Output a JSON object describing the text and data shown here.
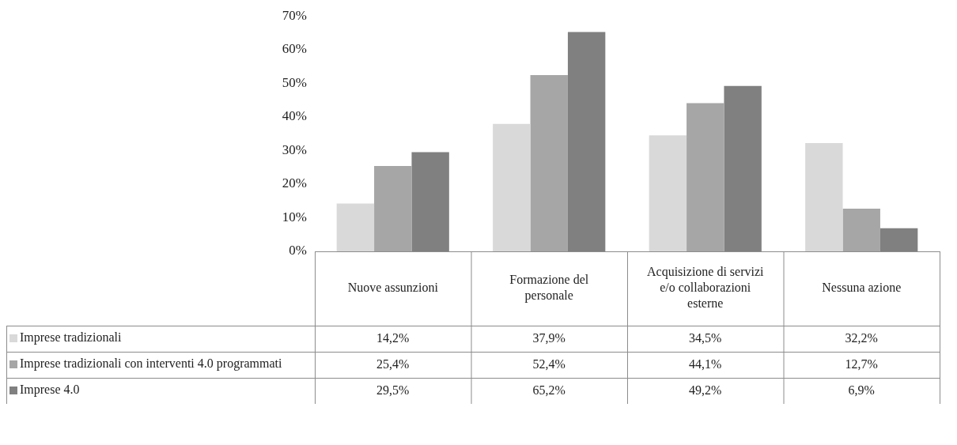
{
  "chart_data": {
    "type": "bar",
    "categories": [
      "Nuove assunzioni",
      "Formazione del personale",
      "Acquisizione di servizi e/o collaborazioni esterne",
      "Nessuna azione"
    ],
    "series": [
      {
        "name": "Imprese tradizionali",
        "color": "#d9d9d9",
        "values": [
          14.2,
          37.9,
          34.5,
          32.2
        ],
        "value_labels": [
          "14,2%",
          "37,9%",
          "34,5%",
          "32,2%"
        ]
      },
      {
        "name": "Imprese tradizionali con interventi 4.0 programmati",
        "color": "#a6a6a6",
        "values": [
          25.4,
          52.4,
          44.1,
          12.7
        ],
        "value_labels": [
          "25,4%",
          "52,4%",
          "44,1%",
          "12,7%"
        ]
      },
      {
        "name": "Imprese 4.0",
        "color": "#808080",
        "values": [
          29.5,
          65.2,
          49.2,
          6.9
        ],
        "value_labels": [
          "29,5%",
          "65,2%",
          "49,2%",
          "6,9%"
        ]
      }
    ],
    "ylim": [
      0,
      70
    ],
    "yticks": [
      {
        "value": 0,
        "label": "0%"
      },
      {
        "value": 10,
        "label": "10%"
      },
      {
        "value": 20,
        "label": "20%"
      },
      {
        "value": 30,
        "label": "30%"
      },
      {
        "value": 40,
        "label": "40%"
      },
      {
        "value": 50,
        "label": "50%"
      },
      {
        "value": 60,
        "label": "60%"
      },
      {
        "value": 70,
        "label": "70%"
      }
    ],
    "grid": false,
    "legend": "bottom left"
  }
}
